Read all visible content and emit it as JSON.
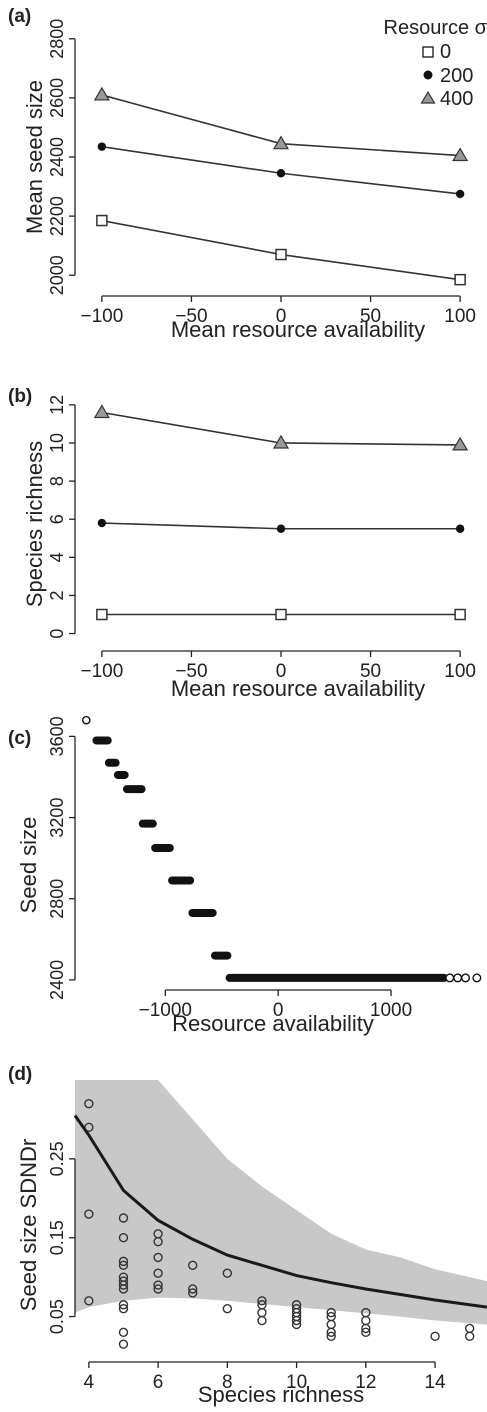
{
  "chart_data": [
    {
      "panel_label": "(a)",
      "type": "line",
      "xlabel": "Mean resource availability",
      "ylabel": "Mean seed size",
      "xlim": [
        -115,
        115
      ],
      "ylim": [
        1950,
        2850
      ],
      "xticks": [
        -100,
        -50,
        0,
        50,
        100
      ],
      "xtick_labels": [
        "−100",
        "−50",
        "0",
        "50",
        "100"
      ],
      "yticks": [
        2000,
        2200,
        2400,
        2600,
        2800
      ],
      "ytick_labels": [
        "2000",
        "2200",
        "2400",
        "2600",
        "2800"
      ],
      "legend_title": "Resource σ",
      "legend_position": "top-right",
      "x": [
        -100,
        0,
        100
      ],
      "series": [
        {
          "name": "0",
          "marker": "square",
          "values": [
            2185,
            2070,
            1985
          ]
        },
        {
          "name": "200",
          "marker": "circle",
          "values": [
            2435,
            2345,
            2275
          ]
        },
        {
          "name": "400",
          "marker": "triangle",
          "values": [
            2610,
            2445,
            2405
          ]
        }
      ]
    },
    {
      "panel_label": "(b)",
      "type": "line",
      "xlabel": "Mean resource availability",
      "ylabel": "Species richness",
      "xlim": [
        -115,
        115
      ],
      "ylim": [
        -0.6,
        13.2
      ],
      "xticks": [
        -100,
        -50,
        0,
        50,
        100
      ],
      "xtick_labels": [
        "−100",
        "−50",
        "0",
        "50",
        "100"
      ],
      "yticks": [
        0,
        2,
        4,
        6,
        8,
        10,
        12
      ],
      "ytick_labels": [
        "0",
        "2",
        "4",
        "6",
        "8",
        "10",
        "12"
      ],
      "x": [
        -100,
        0,
        100
      ],
      "series": [
        {
          "name": "0",
          "marker": "square",
          "values": [
            1,
            1,
            1
          ]
        },
        {
          "name": "200",
          "marker": "circle",
          "values": [
            5.8,
            5.5,
            5.5
          ]
        },
        {
          "name": "400",
          "marker": "triangle",
          "values": [
            11.6,
            10.0,
            9.9
          ]
        }
      ]
    },
    {
      "panel_label": "(c)",
      "type": "scatter",
      "xlabel": "Resource availability",
      "ylabel": "Seed size",
      "xlim": [
        -1800,
        1850
      ],
      "ylim": [
        2380,
        3730
      ],
      "xticks": [
        -1000,
        0,
        1000
      ],
      "xtick_labels": [
        "−1000",
        "0",
        "1000"
      ],
      "yticks": [
        2400,
        2800,
        3200,
        3600
      ],
      "ytick_labels": [
        "2400",
        "2800",
        "3200",
        "3600"
      ],
      "marker": "open-circle",
      "steps": [
        {
          "x_from": -1700,
          "x_to": -1700,
          "y": 3680
        },
        {
          "x_from": -1610,
          "x_to": -1510,
          "y": 3580
        },
        {
          "x_from": -1500,
          "x_to": -1440,
          "y": 3470
        },
        {
          "x_from": -1420,
          "x_to": -1360,
          "y": 3410
        },
        {
          "x_from": -1340,
          "x_to": -1210,
          "y": 3340
        },
        {
          "x_from": -1200,
          "x_to": -1110,
          "y": 3170
        },
        {
          "x_from": -1090,
          "x_to": -960,
          "y": 3050
        },
        {
          "x_from": -940,
          "x_to": -780,
          "y": 2890
        },
        {
          "x_from": -760,
          "x_to": -580,
          "y": 2730
        },
        {
          "x_from": -560,
          "x_to": -450,
          "y": 2520
        },
        {
          "x_from": -430,
          "x_to": 1470,
          "y": 2410
        }
      ],
      "outliers": [
        {
          "x": 1520,
          "y": 2410
        },
        {
          "x": 1590,
          "y": 2410
        },
        {
          "x": 1660,
          "y": 2410
        },
        {
          "x": 1760,
          "y": 2410
        }
      ]
    },
    {
      "panel_label": "(d)",
      "type": "scatter",
      "xlabel": "Species richness",
      "ylabel": "Seed size SDNDr",
      "xlim": [
        3.6,
        15.5
      ],
      "ylim": [
        0.0,
        0.35
      ],
      "xticks": [
        4,
        6,
        8,
        10,
        12,
        14
      ],
      "xtick_labels": [
        "4",
        "6",
        "8",
        "10",
        "12",
        "14"
      ],
      "yticks": [
        0.05,
        0.15,
        0.25
      ],
      "ytick_labels": [
        "0.05",
        "0.15",
        "0.25"
      ],
      "points": [
        {
          "x": 4,
          "y": 0.32
        },
        {
          "x": 4,
          "y": 0.29
        },
        {
          "x": 4,
          "y": 0.18
        },
        {
          "x": 4,
          "y": 0.07
        },
        {
          "x": 5,
          "y": 0.175
        },
        {
          "x": 5,
          "y": 0.15
        },
        {
          "x": 5,
          "y": 0.12
        },
        {
          "x": 5,
          "y": 0.115
        },
        {
          "x": 5,
          "y": 0.1
        },
        {
          "x": 5,
          "y": 0.095
        },
        {
          "x": 5,
          "y": 0.09
        },
        {
          "x": 5,
          "y": 0.085
        },
        {
          "x": 5,
          "y": 0.065
        },
        {
          "x": 5,
          "y": 0.06
        },
        {
          "x": 5,
          "y": 0.03
        },
        {
          "x": 5,
          "y": 0.015
        },
        {
          "x": 6,
          "y": 0.155
        },
        {
          "x": 6,
          "y": 0.145
        },
        {
          "x": 6,
          "y": 0.125
        },
        {
          "x": 6,
          "y": 0.105
        },
        {
          "x": 6,
          "y": 0.09
        },
        {
          "x": 6,
          "y": 0.085
        },
        {
          "x": 7,
          "y": 0.115
        },
        {
          "x": 7,
          "y": 0.085
        },
        {
          "x": 7,
          "y": 0.08
        },
        {
          "x": 8,
          "y": 0.105
        },
        {
          "x": 8,
          "y": 0.06
        },
        {
          "x": 9,
          "y": 0.07
        },
        {
          "x": 9,
          "y": 0.065
        },
        {
          "x": 9,
          "y": 0.055
        },
        {
          "x": 9,
          "y": 0.045
        },
        {
          "x": 10,
          "y": 0.065
        },
        {
          "x": 10,
          "y": 0.06
        },
        {
          "x": 10,
          "y": 0.055
        },
        {
          "x": 10,
          "y": 0.05
        },
        {
          "x": 10,
          "y": 0.045
        },
        {
          "x": 10,
          "y": 0.04
        },
        {
          "x": 11,
          "y": 0.055
        },
        {
          "x": 11,
          "y": 0.05
        },
        {
          "x": 11,
          "y": 0.04
        },
        {
          "x": 11,
          "y": 0.03
        },
        {
          "x": 11,
          "y": 0.025
        },
        {
          "x": 12,
          "y": 0.055
        },
        {
          "x": 12,
          "y": 0.045
        },
        {
          "x": 12,
          "y": 0.035
        },
        {
          "x": 12,
          "y": 0.03
        },
        {
          "x": 14,
          "y": 0.025
        },
        {
          "x": 15,
          "y": 0.035
        },
        {
          "x": 15,
          "y": 0.025
        }
      ],
      "fit_line": {
        "x": [
          3.6,
          4,
          5,
          6,
          7,
          8,
          9,
          10,
          11,
          12,
          13,
          14,
          15.5
        ],
        "y": [
          0.305,
          0.28,
          0.21,
          0.172,
          0.148,
          0.128,
          0.115,
          0.102,
          0.093,
          0.085,
          0.078,
          0.071,
          0.062
        ]
      },
      "band": {
        "x": [
          3.6,
          4,
          5,
          6,
          7,
          8,
          9,
          10,
          11,
          12,
          13,
          14,
          15.5
        ],
        "upper": [
          0.35,
          0.35,
          0.35,
          0.35,
          0.3,
          0.25,
          0.215,
          0.185,
          0.155,
          0.135,
          0.125,
          0.11,
          0.095
        ],
        "lower": [
          0.055,
          0.062,
          0.07,
          0.074,
          0.073,
          0.07,
          0.066,
          0.062,
          0.058,
          0.054,
          0.05,
          0.045,
          0.04
        ]
      }
    }
  ],
  "colors": {
    "axis": "#222222",
    "line": "#333333",
    "triangle_fill": "#999999",
    "band": "#c8c8c8",
    "fit_line": "#1a1a1a"
  }
}
